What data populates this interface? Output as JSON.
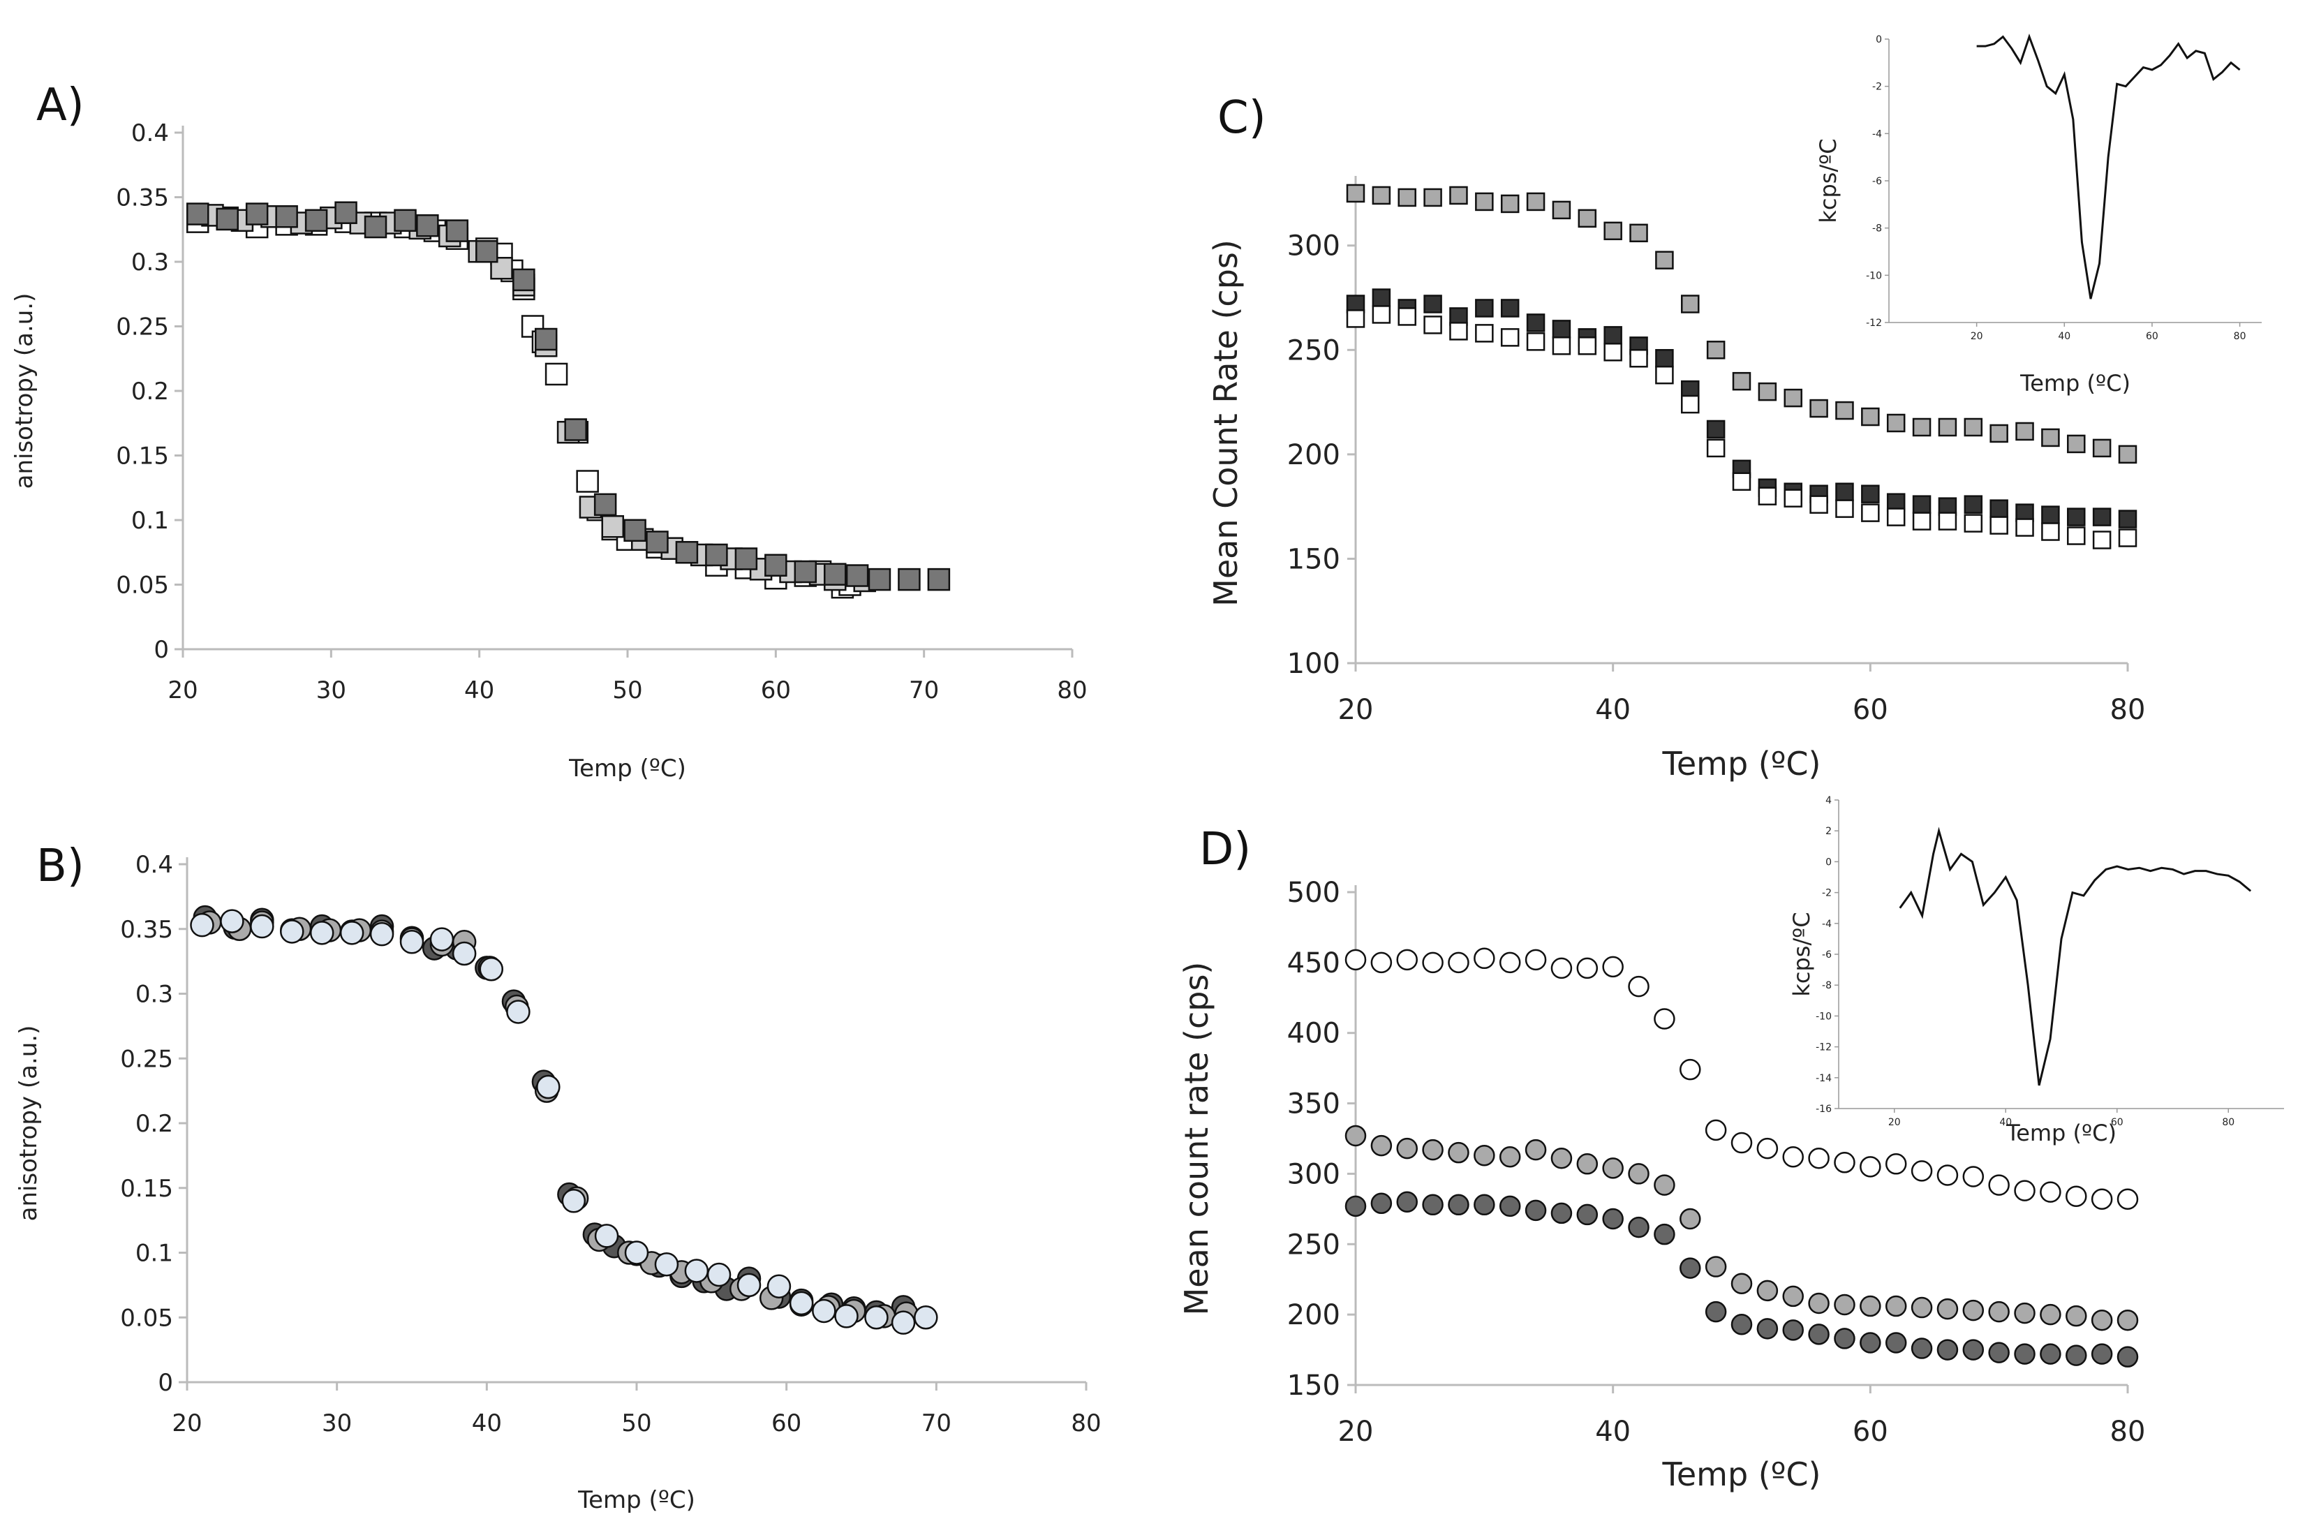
{
  "chart_data": [
    {
      "panel": "A)",
      "type": "scatter",
      "xlabel": "Temp (ºC)",
      "ylabel": "anisotropy (a.u.)",
      "xlim": [
        20,
        80
      ],
      "ylim": [
        0,
        0.4
      ],
      "xticks": [
        "20",
        "30",
        "40",
        "50",
        "60",
        "70",
        "80"
      ],
      "yticks": [
        "0",
        "0.05",
        "0.1",
        "0.15",
        "0.2",
        "0.25",
        "0.3",
        "0.35",
        "0.4"
      ],
      "series": [
        {
          "name": "light squares",
          "marker": "square",
          "color": "#ffffff",
          "x": [
            21,
            23,
            25,
            27,
            29,
            31,
            33,
            35,
            37,
            38.5,
            40.5,
            41.5,
            42.2,
            43,
            43.6,
            44.3,
            45.2,
            46.6,
            47.3,
            48,
            49,
            50,
            52,
            54,
            56,
            58,
            60,
            62,
            63,
            64.5,
            65
          ],
          "y": [
            0.331,
            0.334,
            0.327,
            0.329,
            0.329,
            0.331,
            0.33,
            0.327,
            0.324,
            0.318,
            0.31,
            0.306,
            0.293,
            0.279,
            0.25,
            0.238,
            0.213,
            0.168,
            0.13,
            0.108,
            0.093,
            0.085,
            0.079,
            0.075,
            0.065,
            0.063,
            0.055,
            0.057,
            0.06,
            0.048,
            0.05
          ]
        },
        {
          "name": "medium squares",
          "marker": "square",
          "color": "#cccccc",
          "x": [
            22,
            24,
            26,
            28,
            30,
            32,
            34,
            36,
            38,
            40,
            41.5,
            43,
            44.5,
            46,
            47.5,
            49,
            51,
            53,
            55,
            57,
            59,
            61,
            63,
            64,
            66
          ],
          "y": [
            0.336,
            0.332,
            0.335,
            0.33,
            0.334,
            0.33,
            0.33,
            0.326,
            0.32,
            0.308,
            0.295,
            0.282,
            0.235,
            0.168,
            0.11,
            0.095,
            0.085,
            0.078,
            0.073,
            0.07,
            0.062,
            0.06,
            0.058,
            0.054,
            0.053
          ]
        },
        {
          "name": "dark squares",
          "marker": "square",
          "color": "#777777",
          "x": [
            21,
            23,
            25,
            27,
            29,
            31,
            33,
            35,
            36.5,
            38.5,
            40.5,
            43,
            44.5,
            46.5,
            48.5,
            50.5,
            52,
            54,
            56,
            58,
            60,
            62,
            64,
            65.5,
            67,
            69,
            71
          ],
          "y": [
            0.337,
            0.333,
            0.337,
            0.335,
            0.332,
            0.338,
            0.327,
            0.332,
            0.328,
            0.324,
            0.308,
            0.286,
            0.24,
            0.17,
            0.112,
            0.092,
            0.083,
            0.075,
            0.073,
            0.07,
            0.065,
            0.06,
            0.058,
            0.057,
            0.054,
            0.054,
            0.054
          ]
        }
      ]
    },
    {
      "panel": "B)",
      "type": "scatter",
      "xlabel": "Temp (ºC)",
      "ylabel": "anisotropy (a.u.)",
      "xlim": [
        20,
        80
      ],
      "ylim": [
        0,
        0.4
      ],
      "xticks": [
        "20",
        "30",
        "40",
        "50",
        "60",
        "70",
        "80"
      ],
      "yticks": [
        "0",
        "0.05",
        "0.1",
        "0.15",
        "0.2",
        "0.25",
        "0.3",
        "0.35",
        "0.4"
      ],
      "series": [
        {
          "name": "dark circles",
          "marker": "circle",
          "color": "#555555",
          "x": [
            21.2,
            23.2,
            25,
            27,
            29,
            31,
            33,
            35,
            36.5,
            38,
            40,
            41.8,
            43.8,
            45.5,
            47.2,
            48.5,
            50,
            51.5,
            53,
            54.5,
            56,
            57.5,
            59.5,
            61,
            63,
            64.5,
            66,
            67.8
          ],
          "y": [
            0.359,
            0.351,
            0.357,
            0.349,
            0.352,
            0.348,
            0.352,
            0.343,
            0.335,
            0.335,
            0.32,
            0.294,
            0.232,
            0.145,
            0.114,
            0.105,
            0.099,
            0.09,
            0.082,
            0.078,
            0.072,
            0.08,
            0.066,
            0.063,
            0.06,
            0.057,
            0.054,
            0.058
          ]
        },
        {
          "name": "grey circles",
          "marker": "circle",
          "color": "#aaaaaa",
          "x": [
            21.5,
            23.5,
            25,
            27.5,
            29.5,
            31.5,
            33,
            35,
            37,
            38.5,
            40.2,
            42,
            44,
            46,
            47.5,
            49.5,
            51,
            53,
            55,
            57,
            59,
            61,
            62.8,
            64.5,
            66.5,
            68
          ],
          "y": [
            0.355,
            0.35,
            0.355,
            0.35,
            0.349,
            0.349,
            0.348,
            0.342,
            0.338,
            0.34,
            0.32,
            0.29,
            0.225,
            0.142,
            0.11,
            0.1,
            0.092,
            0.085,
            0.078,
            0.072,
            0.065,
            0.06,
            0.058,
            0.055,
            0.051,
            0.053
          ]
        },
        {
          "name": "light circles",
          "marker": "circle",
          "color": "#dde6f0",
          "x": [
            21,
            23,
            25,
            27,
            29,
            31,
            33,
            35,
            37,
            38.5,
            40.3,
            42.1,
            44.1,
            45.8,
            48,
            50,
            52,
            54,
            55.5,
            57.5,
            59.5,
            61,
            62.5,
            64,
            66,
            67.8,
            69.3
          ],
          "y": [
            0.353,
            0.356,
            0.352,
            0.348,
            0.347,
            0.347,
            0.346,
            0.34,
            0.342,
            0.331,
            0.319,
            0.286,
            0.228,
            0.14,
            0.113,
            0.1,
            0.091,
            0.086,
            0.083,
            0.075,
            0.074,
            0.061,
            0.055,
            0.051,
            0.05,
            0.046,
            0.05
          ]
        }
      ]
    },
    {
      "panel": "C)",
      "type": "scatter",
      "xlabel": "Temp (ºC)",
      "ylabel": "Mean Count Rate (cps)",
      "xlim": [
        20,
        80
      ],
      "ylim": [
        100,
        330
      ],
      "xticks": [
        "20",
        "40",
        "60",
        "80"
      ],
      "yticks": [
        "100",
        "150",
        "200",
        "250",
        "300"
      ],
      "series": [
        {
          "name": "grey squares",
          "marker": "square",
          "color": "#aaaaaa",
          "x": [
            20,
            22,
            24,
            26,
            28,
            30,
            32,
            34,
            36,
            38,
            40,
            42,
            44,
            46,
            48,
            50,
            52,
            54,
            56,
            58,
            60,
            62,
            64,
            66,
            68,
            70,
            72,
            74,
            76,
            78,
            80
          ],
          "y": [
            325,
            324,
            323,
            323,
            324,
            321,
            320,
            321,
            317,
            313,
            307,
            306,
            293,
            272,
            250,
            235,
            230,
            227,
            222,
            221,
            218,
            215,
            213,
            213,
            213,
            210,
            211,
            208,
            205,
            203,
            200
          ]
        },
        {
          "name": "dark squares",
          "marker": "square",
          "color": "#333333",
          "x": [
            20,
            22,
            24,
            26,
            28,
            30,
            32,
            34,
            36,
            38,
            40,
            42,
            44,
            46,
            48,
            50,
            52,
            54,
            56,
            58,
            60,
            62,
            64,
            66,
            68,
            70,
            72,
            74,
            76,
            78,
            80
          ],
          "y": [
            272,
            275,
            270,
            272,
            266,
            270,
            270,
            263,
            260,
            256,
            257,
            252,
            246,
            231,
            212,
            193,
            184,
            182,
            181,
            182,
            181,
            177,
            176,
            175,
            176,
            174,
            172,
            171,
            170,
            170,
            169
          ]
        },
        {
          "name": "white squares",
          "marker": "square",
          "color": "#ffffff",
          "x": [
            20,
            22,
            24,
            26,
            28,
            30,
            32,
            34,
            36,
            38,
            40,
            42,
            44,
            46,
            48,
            50,
            52,
            54,
            56,
            58,
            60,
            62,
            64,
            66,
            68,
            70,
            72,
            74,
            76,
            78,
            80
          ],
          "y": [
            265,
            267,
            266,
            262,
            259,
            258,
            256,
            254,
            252,
            252,
            249,
            246,
            238,
            224,
            203,
            187,
            180,
            179,
            176,
            174,
            172,
            170,
            168,
            168,
            167,
            166,
            165,
            163,
            161,
            159,
            160
          ]
        }
      ],
      "inset": {
        "type": "line",
        "xlabel": "Temp (ºC)",
        "ylabel": "kcps/ºC",
        "xlim": [
          0,
          85
        ],
        "ylim": [
          -12,
          0
        ],
        "xticks": [
          "20",
          "40",
          "60",
          "80"
        ],
        "yticks": [
          "0",
          "-2",
          "-4",
          "-6",
          "-8",
          "-10",
          "-12"
        ],
        "x": [
          20,
          22,
          24,
          26,
          28,
          30,
          32,
          34,
          36,
          38,
          40,
          42,
          44,
          46,
          48,
          50,
          52,
          54,
          56,
          58,
          60,
          62,
          64,
          66,
          68,
          70,
          72,
          74,
          76,
          78,
          80
        ],
        "y": [
          -0.3,
          -0.3,
          -0.2,
          0.1,
          -0.4,
          -1.0,
          0.1,
          -0.9,
          -2.0,
          -2.3,
          -1.5,
          -3.4,
          -8.6,
          -11.0,
          -9.5,
          -5.0,
          -1.9,
          -2.0,
          -1.6,
          -1.2,
          -1.3,
          -1.1,
          -0.7,
          -0.2,
          -0.8,
          -0.5,
          -0.6,
          -1.7,
          -1.4,
          -1.0,
          -1.3
        ]
      }
    },
    {
      "panel": "D)",
      "type": "scatter",
      "xlabel": "Temp (ºC)",
      "ylabel": "Mean count rate (cps)",
      "xlim": [
        20,
        80
      ],
      "ylim": [
        150,
        500
      ],
      "xticks": [
        "20",
        "40",
        "60",
        "80"
      ],
      "yticks": [
        "150",
        "200",
        "250",
        "300",
        "350",
        "400",
        "450",
        "500"
      ],
      "series": [
        {
          "name": "white circles",
          "marker": "circle",
          "color": "#ffffff",
          "x": [
            20,
            22,
            24,
            26,
            28,
            30,
            32,
            34,
            36,
            38,
            40,
            42,
            44,
            46,
            48,
            50,
            52,
            54,
            56,
            58,
            60,
            62,
            64,
            66,
            68,
            70,
            72,
            74,
            76,
            78,
            80
          ],
          "y": [
            452,
            450,
            452,
            450,
            450,
            453,
            450,
            452,
            446,
            446,
            447,
            433,
            410,
            374,
            331,
            322,
            318,
            312,
            311,
            308,
            305,
            307,
            302,
            299,
            298,
            292,
            288,
            287,
            284,
            282,
            282
          ]
        },
        {
          "name": "grey circles",
          "marker": "circle",
          "color": "#aaaaaa",
          "x": [
            20,
            22,
            24,
            26,
            28,
            30,
            32,
            34,
            36,
            38,
            40,
            42,
            44,
            46,
            48,
            50,
            52,
            54,
            56,
            58,
            60,
            62,
            64,
            66,
            68,
            70,
            72,
            74,
            76,
            78,
            80
          ],
          "y": [
            327,
            320,
            318,
            317,
            315,
            313,
            312,
            317,
            311,
            307,
            304,
            300,
            292,
            268,
            234,
            222,
            217,
            213,
            208,
            207,
            206,
            206,
            205,
            204,
            203,
            202,
            201,
            200,
            199,
            196,
            196
          ]
        },
        {
          "name": "dark circles",
          "marker": "circle",
          "color": "#666666",
          "x": [
            20,
            22,
            24,
            26,
            28,
            30,
            32,
            34,
            36,
            38,
            40,
            42,
            44,
            46,
            48,
            50,
            52,
            54,
            56,
            58,
            60,
            62,
            64,
            66,
            68,
            70,
            72,
            74,
            76,
            78,
            80
          ],
          "y": [
            277,
            279,
            280,
            278,
            278,
            278,
            277,
            274,
            272,
            271,
            268,
            262,
            257,
            233,
            202,
            193,
            190,
            189,
            186,
            183,
            180,
            180,
            176,
            175,
            175,
            173,
            172,
            172,
            171,
            172,
            170
          ]
        }
      ],
      "inset": {
        "type": "line",
        "xlabel": "Temp (ºC)",
        "ylabel": "kcps/ºC",
        "xlim": [
          10,
          90
        ],
        "ylim": [
          -16,
          4
        ],
        "xticks": [
          "20",
          "40",
          "60",
          "80"
        ],
        "yticks": [
          "4",
          "2",
          "0",
          "-2",
          "-4",
          "-6",
          "-8",
          "-10",
          "-12",
          "-14",
          "-16"
        ],
        "x": [
          21,
          23,
          25,
          27,
          28,
          30,
          32,
          34,
          36,
          38,
          40,
          42,
          44,
          46,
          48,
          50,
          52,
          54,
          56,
          58,
          60,
          62,
          64,
          66,
          68,
          70,
          72,
          74,
          76,
          78,
          80,
          82,
          84
        ],
        "y": [
          -3.0,
          -2.0,
          -3.5,
          0.5,
          2.0,
          -0.5,
          0.5,
          0.0,
          -2.8,
          -2.0,
          -1.0,
          -2.5,
          -8.0,
          -14.5,
          -11.5,
          -5.0,
          -2.0,
          -2.2,
          -1.2,
          -0.5,
          -0.3,
          -0.5,
          -0.4,
          -0.6,
          -0.4,
          -0.5,
          -0.8,
          -0.6,
          -0.6,
          -0.8,
          -0.9,
          -1.3,
          -1.9
        ]
      }
    }
  ]
}
